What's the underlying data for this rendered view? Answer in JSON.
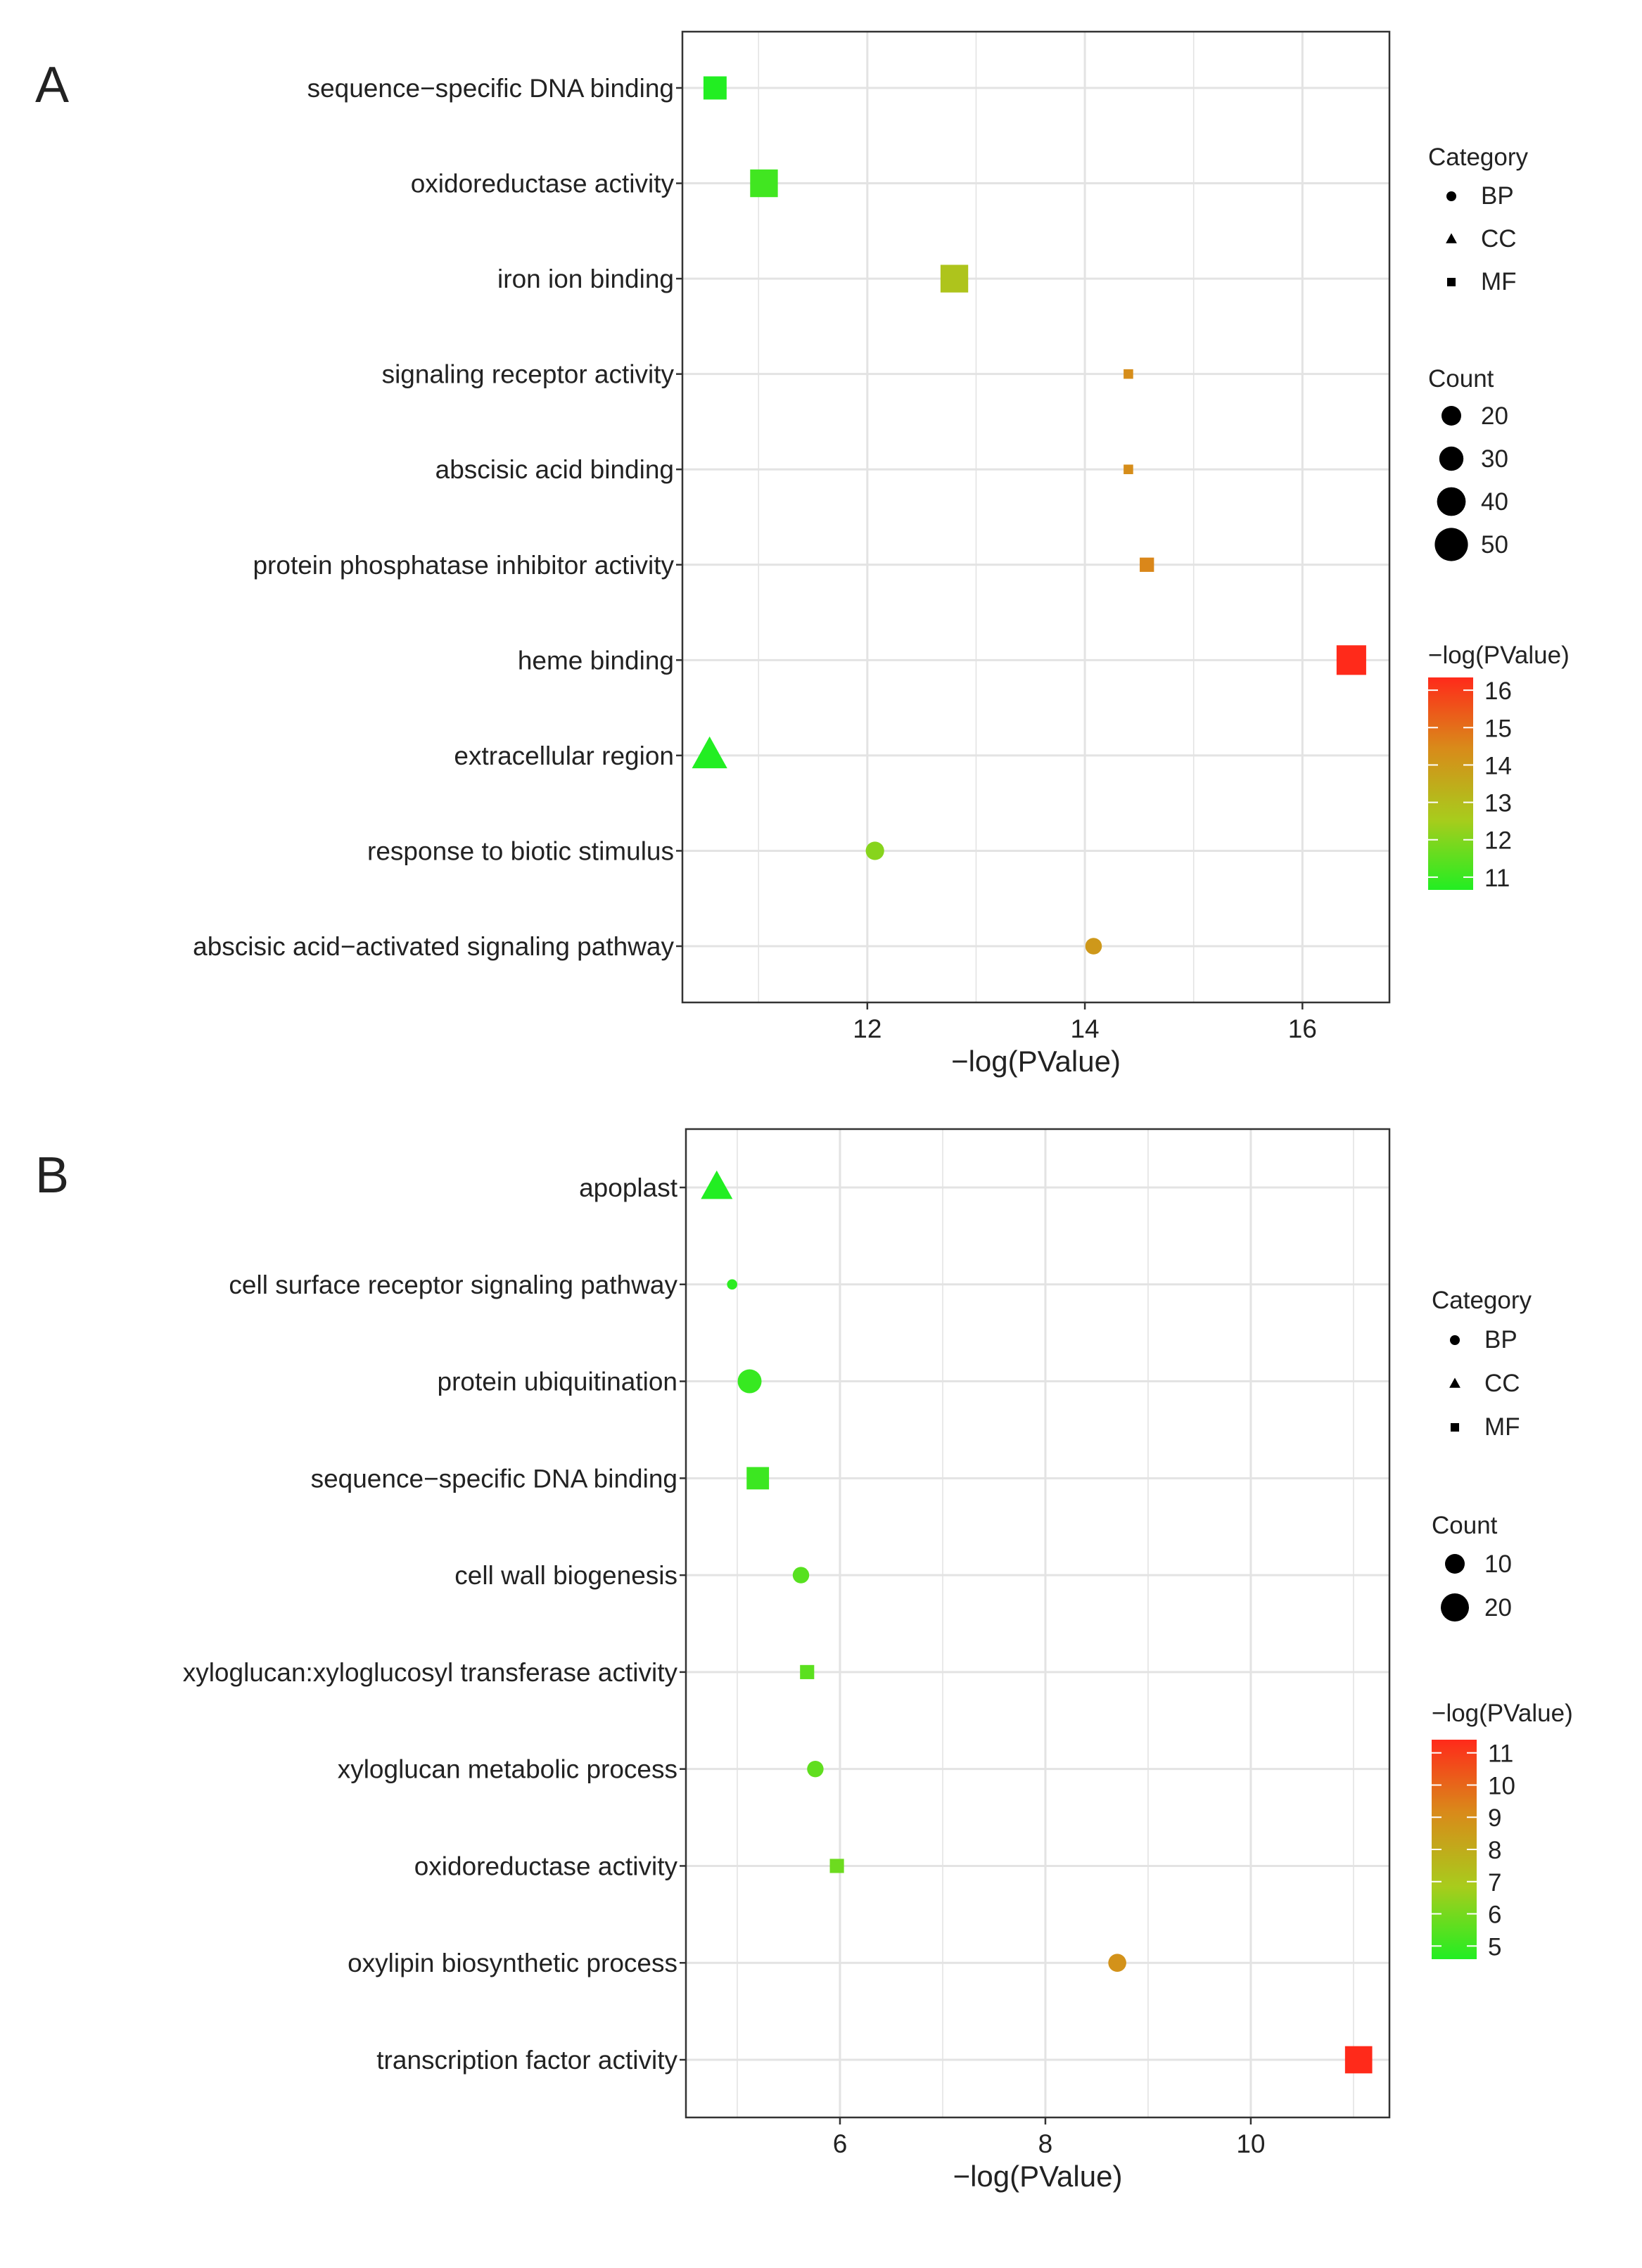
{
  "colors": {
    "low": "#22ee22",
    "mid_low": "#a8cc1c",
    "mid_high": "#d98a1a",
    "high": "#ff2a1a",
    "grid": "#e3e3e3",
    "frame": "#333333"
  },
  "chart_data": [
    {
      "type": "scatter",
      "panel_label": "A",
      "xlabel": "−log(PValue)",
      "xlim": [
        10.3,
        16.8
      ],
      "x_ticks": [
        12,
        14,
        16
      ],
      "y_terms": [
        "sequence−specific DNA binding",
        "oxidoreductase activity",
        "iron ion binding",
        "signaling receptor activity",
        "abscisic acid binding",
        "protein phosphatase inhibitor activity",
        "heme binding",
        "extracellular region",
        "response to biotic stimulus",
        "abscisic acid−activated signaling pathway"
      ],
      "points": [
        {
          "term": "sequence−specific DNA binding",
          "x": 10.6,
          "count": 28,
          "category": "MF"
        },
        {
          "term": "oxidoreductase activity",
          "x": 11.05,
          "count": 42,
          "category": "MF"
        },
        {
          "term": "iron ion binding",
          "x": 12.8,
          "count": 42,
          "category": "MF"
        },
        {
          "term": "signaling receptor activity",
          "x": 14.4,
          "count": 6,
          "category": "MF"
        },
        {
          "term": "abscisic acid binding",
          "x": 14.4,
          "count": 6,
          "category": "MF"
        },
        {
          "term": "protein phosphatase inhibitor activity",
          "x": 14.57,
          "count": 12,
          "category": "MF"
        },
        {
          "term": "heme binding",
          "x": 16.45,
          "count": 48,
          "category": "MF"
        },
        {
          "term": "extracellular region",
          "x": 10.55,
          "count": 40,
          "category": "CC"
        },
        {
          "term": "response to biotic stimulus",
          "x": 12.07,
          "count": 14,
          "category": "BP"
        },
        {
          "term": "abscisic acid−activated signaling pathway",
          "x": 14.08,
          "count": 12,
          "category": "BP"
        }
      ],
      "legend": {
        "category_title": "Category",
        "categories": [
          "BP",
          "CC",
          "MF"
        ],
        "count_title": "Count",
        "count_values": [
          20,
          30,
          40,
          50
        ],
        "color_title": "−log(PValue)",
        "color_ticks": [
          16,
          15,
          14,
          13,
          12,
          11
        ],
        "color_range": [
          10.6,
          16.45
        ]
      }
    },
    {
      "type": "scatter",
      "panel_label": "B",
      "xlabel": "−log(PValue)",
      "xlim": [
        4.5,
        11.35
      ],
      "x_ticks": [
        6,
        8,
        10
      ],
      "y_terms": [
        "apoplast",
        "cell surface receptor signaling pathway",
        "protein ubiquitination",
        "sequence−specific DNA binding",
        "cell wall biogenesis",
        "xyloglucan:xyloglucosyl transferase activity",
        "xyloglucan metabolic process",
        "oxidoreductase activity",
        "oxylipin biosynthetic process",
        "transcription factor activity"
      ],
      "points": [
        {
          "term": "apoplast",
          "x": 4.8,
          "count": 20,
          "category": "CC"
        },
        {
          "term": "cell surface receptor signaling pathway",
          "x": 4.95,
          "count": 3,
          "category": "BP"
        },
        {
          "term": "protein ubiquitination",
          "x": 5.12,
          "count": 14,
          "category": "BP"
        },
        {
          "term": "sequence−specific DNA binding",
          "x": 5.2,
          "count": 17,
          "category": "MF"
        },
        {
          "term": "cell wall biogenesis",
          "x": 5.62,
          "count": 7,
          "category": "BP"
        },
        {
          "term": "xyloglucan:xyloglucosyl transferase activity",
          "x": 5.68,
          "count": 7,
          "category": "MF"
        },
        {
          "term": "xyloglucan metabolic process",
          "x": 5.76,
          "count": 7,
          "category": "BP"
        },
        {
          "term": "oxidoreductase activity",
          "x": 5.97,
          "count": 7,
          "category": "MF"
        },
        {
          "term": "oxylipin biosynthetic process",
          "x": 8.7,
          "count": 8,
          "category": "BP"
        },
        {
          "term": "transcription factor activity",
          "x": 11.05,
          "count": 25,
          "category": "MF"
        }
      ],
      "legend": {
        "category_title": "Category",
        "categories": [
          "BP",
          "CC",
          "MF"
        ],
        "count_title": "Count",
        "count_values": [
          10,
          20
        ],
        "color_title": "−log(PValue)",
        "color_ticks": [
          11,
          10,
          9,
          8,
          7,
          6,
          5
        ],
        "color_range": [
          4.8,
          11.05
        ]
      }
    }
  ]
}
